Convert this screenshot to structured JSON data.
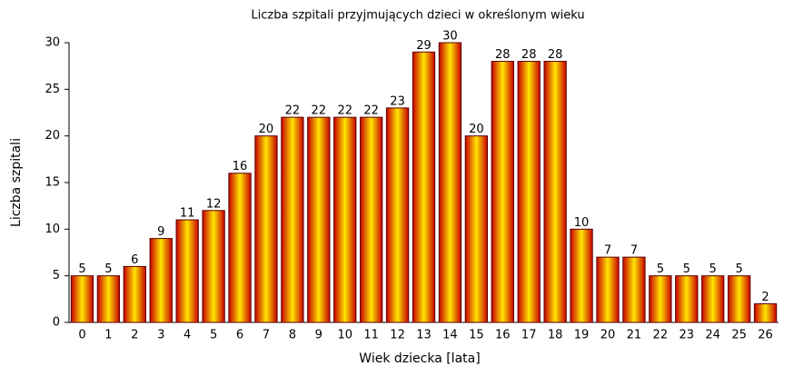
{
  "chart_data": {
    "type": "bar",
    "title": "Liczba szpitali przyjmujących dzieci w określonym wieku",
    "x_label": "Wiek dziecka [lata]",
    "y_label": "Liczba szpitali",
    "categories": [
      "0",
      "1",
      "2",
      "3",
      "4",
      "5",
      "6",
      "7",
      "8",
      "9",
      "10",
      "11",
      "12",
      "13",
      "14",
      "15",
      "16",
      "17",
      "18",
      "19",
      "20",
      "21",
      "22",
      "23",
      "24",
      "25",
      "26"
    ],
    "values": [
      5,
      5,
      6,
      9,
      11,
      12,
      16,
      20,
      22,
      22,
      22,
      22,
      23,
      29,
      30,
      20,
      28,
      28,
      28,
      10,
      7,
      7,
      5,
      5,
      5,
      5,
      2
    ],
    "ylim": [
      0,
      30
    ],
    "yticks": [
      0,
      5,
      10,
      15,
      20,
      25,
      30
    ],
    "grid": false
  }
}
